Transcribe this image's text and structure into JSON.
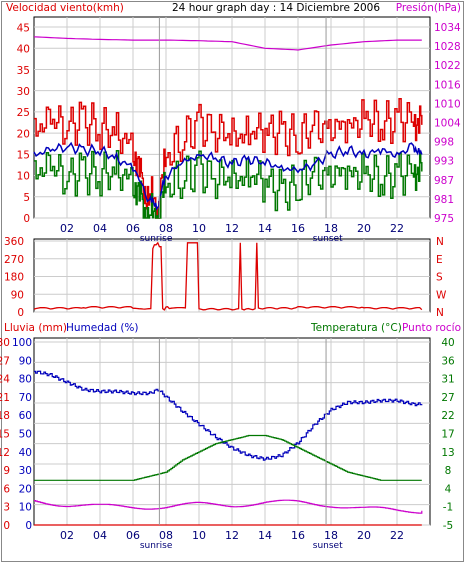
{
  "colors": {
    "red": "#dd0000",
    "darkred": "#aa0000",
    "green": "#007700",
    "blue": "#0000bb",
    "magenta": "#cc00cc",
    "grid": "#cccccc",
    "frame": "#000000",
    "xaxis": "#000077"
  },
  "x_ticks": [
    "02",
    "04",
    "06",
    "08",
    "10",
    "12",
    "14",
    "16",
    "18",
    "20",
    "22"
  ],
  "sun_labels": {
    "sunrise": "sunrise",
    "sunset": "sunset"
  },
  "chart_data": [
    {
      "type": "line",
      "id": "wind-pressure",
      "title": "24 hour graph day : 14 Diciembre 2006",
      "ylabel_left": "Velocidad viento(kmh)",
      "ylabel_right": "Presión(hPa)",
      "x_range": [
        0,
        24
      ],
      "yticks_left": [
        "0",
        "5",
        "10",
        "15",
        "20",
        "25",
        "30",
        "35",
        "40",
        "45"
      ],
      "ylim_left": [
        0,
        47.5
      ],
      "yticks_right": [
        "975",
        "981",
        "987",
        "993",
        "998",
        "1004",
        "1010",
        "1016",
        "1022",
        "1028",
        "1034"
      ],
      "ylim_right": [
        975,
        1036
      ],
      "series": [
        {
          "name": "Velocidad viento",
          "color": "red",
          "axis": "left",
          "style": "step",
          "x": [
            0,
            1,
            2,
            3,
            4,
            5,
            6,
            6.5,
            7,
            7.5,
            8,
            9,
            10,
            11,
            12,
            13,
            14,
            15,
            16,
            17,
            18,
            19,
            20,
            21,
            22,
            23,
            23.5
          ],
          "y": [
            21,
            23,
            22,
            23,
            21,
            20,
            17,
            8,
            5,
            2,
            14,
            19,
            22,
            21,
            19,
            20,
            21,
            20,
            19,
            21,
            22,
            21,
            24,
            22,
            23,
            24,
            22
          ]
        },
        {
          "color": "green",
          "axis": "left",
          "style": "step",
          "x": [
            0,
            1,
            2,
            3,
            4,
            5,
            6,
            6.5,
            7,
            7.5,
            8,
            9,
            10,
            11,
            12,
            13,
            14,
            15,
            16,
            17,
            18,
            19,
            20,
            21,
            22,
            23,
            23.5
          ],
          "y": [
            11,
            12,
            10,
            11,
            10,
            11,
            9,
            3,
            0,
            1,
            7,
            10,
            11,
            10,
            9,
            10,
            9,
            6,
            8,
            10,
            11,
            10,
            11,
            9,
            10,
            12,
            11
          ]
        },
        {
          "color": "blue",
          "axis": "left",
          "x": [
            0,
            1,
            2,
            3,
            4,
            5,
            6,
            7,
            7.5,
            8,
            9,
            10,
            11,
            12,
            13,
            14,
            15,
            16,
            17,
            18,
            19,
            20,
            21,
            22,
            23,
            23.5
          ],
          "y": [
            15,
            16,
            17,
            16,
            16,
            14,
            12,
            4,
            3,
            10,
            13,
            15,
            14,
            13,
            14,
            13,
            12,
            11,
            13,
            15,
            16,
            15,
            16,
            15,
            17,
            15
          ]
        },
        {
          "name": "Presión",
          "color": "magenta",
          "axis": "right",
          "x": [
            0,
            2,
            4,
            6,
            8,
            10,
            12,
            14,
            16,
            18,
            20,
            22,
            23.5
          ],
          "y": [
            1030,
            1029.5,
            1029.2,
            1029,
            1029,
            1028.8,
            1028.5,
            1026.5,
            1026,
            1027.5,
            1028.5,
            1029,
            1029
          ]
        }
      ]
    },
    {
      "type": "line",
      "id": "wind-direction",
      "x_range": [
        0,
        24
      ],
      "yticks_left": [
        "0",
        "90",
        "180",
        "270",
        "360"
      ],
      "ylim_left": [
        0,
        380
      ],
      "yticks_right": [
        "N",
        "W",
        "S",
        "E",
        "N"
      ],
      "series": [
        {
          "color": "red",
          "style": "step",
          "x": [
            0,
            3,
            6,
            7.2,
            7.3,
            7.5,
            7.6,
            7.8,
            8,
            8.2,
            9.3,
            9.4,
            9.8,
            10,
            12.4,
            12.5,
            12.6,
            13.4,
            13.5,
            13.6,
            16,
            20,
            23.5
          ],
          "y": [
            15,
            20,
            15,
            330,
            350,
            360,
            340,
            10,
            20,
            15,
            360,
            360,
            360,
            10,
            10,
            360,
            10,
            10,
            360,
            15,
            20,
            15,
            12
          ]
        }
      ]
    },
    {
      "type": "line",
      "id": "rain-humidity-temp",
      "ylabel_left_1": "Lluvia (mm)",
      "ylabel_left_2": "Humedad (%)",
      "ylabel_right_1": "Temperatura (°C)",
      "ylabel_right_2": "Punto rocío",
      "x_range": [
        0,
        24
      ],
      "yticks_rain": [
        "0",
        "3",
        "6",
        "9",
        "12",
        "15",
        "18",
        "21",
        "24",
        "27",
        "30"
      ],
      "yticks_humidity": [
        "0",
        "10",
        "20",
        "30",
        "40",
        "50",
        "60",
        "70",
        "80",
        "90",
        "100"
      ],
      "yticks_temp": [
        "-5",
        "-1",
        "4",
        "8",
        "13",
        "17",
        "22",
        "27",
        "31",
        "36",
        "40"
      ],
      "ylim_temp": [
        -5,
        40
      ],
      "series": [
        {
          "name": "Humedad",
          "color": "blue",
          "axis": "humidity",
          "x": [
            0,
            1,
            2,
            3,
            4,
            5,
            6,
            7,
            7.5,
            8,
            9,
            10,
            11,
            12,
            13,
            14,
            15,
            16,
            17,
            18,
            19,
            20,
            21,
            22,
            23,
            23.5
          ],
          "y": [
            84,
            82,
            78,
            74,
            73,
            73,
            72,
            72,
            74,
            70,
            62,
            55,
            48,
            42,
            38,
            36,
            38,
            45,
            55,
            63,
            67,
            67,
            68,
            68,
            66,
            66
          ]
        },
        {
          "name": "Temperatura",
          "color": "green",
          "axis": "temp",
          "x": [
            0,
            2,
            4,
            6,
            7,
            8,
            9,
            10,
            11,
            12,
            13,
            14,
            15,
            16,
            17,
            18,
            19,
            20,
            21,
            23.5
          ],
          "y": [
            6,
            6,
            6,
            6,
            7,
            8,
            11,
            13,
            15,
            16,
            17,
            17,
            16,
            14,
            12,
            10,
            8,
            7,
            6,
            6
          ]
        },
        {
          "name": "Punto rocío",
          "color": "magenta",
          "axis": "temp",
          "x": [
            0,
            2,
            4,
            6,
            8,
            10,
            12,
            14,
            16,
            18,
            20,
            22,
            23.5
          ],
          "y": [
            1,
            0,
            -0.5,
            -0.5,
            -0.5,
            0,
            0,
            0.5,
            0.5,
            0,
            -1,
            -1.5,
            -1.5
          ]
        },
        {
          "name": "Lluvia",
          "color": "red",
          "axis": "rain",
          "x": [
            0,
            23.5
          ],
          "y": [
            0,
            0
          ]
        }
      ]
    }
  ]
}
